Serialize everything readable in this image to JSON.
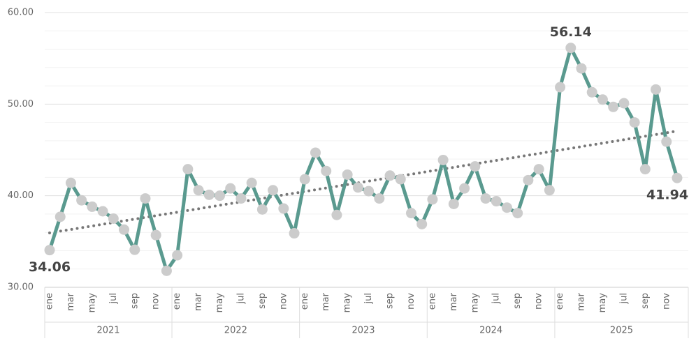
{
  "chart_data": {
    "type": "line",
    "categories": [
      "ene",
      null,
      "mar",
      null,
      "may",
      null,
      "jul",
      null,
      "sep",
      null,
      "nov",
      null,
      "ene",
      null,
      "mar",
      null,
      "may",
      null,
      "jul",
      null,
      "sep",
      null,
      "nov",
      null,
      "ene",
      null,
      "mar",
      null,
      "may",
      null,
      "jul",
      null,
      "sep",
      null,
      "nov",
      null,
      "ene",
      null,
      "mar",
      null,
      "may",
      null,
      "jul",
      null,
      "sep",
      null,
      "nov",
      null,
      "ene",
      null,
      "mar",
      null,
      "may",
      null,
      "jul",
      null,
      "sep",
      null,
      "nov",
      null
    ],
    "groups": [
      "2021",
      "2022",
      "2023",
      "2024",
      "2025"
    ],
    "series": [
      {
        "color": "#5a9a8f",
        "marker_color": "#cccccc",
        "values": [
          34.06,
          37.7,
          41.4,
          39.5,
          38.8,
          38.3,
          37.5,
          36.3,
          34.1,
          39.7,
          35.7,
          31.8,
          33.5,
          42.9,
          40.6,
          40.1,
          40.0,
          40.8,
          39.7,
          41.4,
          38.5,
          40.6,
          38.6,
          35.9,
          41.8,
          44.7,
          42.7,
          37.9,
          42.3,
          40.9,
          40.5,
          39.7,
          42.2,
          41.8,
          38.1,
          36.9,
          39.6,
          43.9,
          39.1,
          40.8,
          43.2,
          39.7,
          39.4,
          38.7,
          38.1,
          41.7,
          42.9,
          40.6,
          51.85,
          56.14,
          53.9,
          51.3,
          50.5,
          49.7,
          50.1,
          48.0,
          42.9,
          51.6,
          45.9,
          41.94
        ],
        "value_labels": [
          "34.06",
          null,
          null,
          null,
          null,
          null,
          null,
          null,
          null,
          null,
          null,
          null,
          null,
          null,
          null,
          null,
          null,
          null,
          null,
          null,
          null,
          null,
          null,
          null,
          null,
          null,
          null,
          null,
          null,
          null,
          null,
          null,
          null,
          null,
          null,
          null,
          null,
          null,
          null,
          null,
          null,
          null,
          null,
          null,
          null,
          null,
          null,
          null,
          null,
          "56.14",
          null,
          null,
          null,
          null,
          null,
          null,
          null,
          null,
          null,
          "41.94"
        ]
      }
    ],
    "trendline": {
      "color": "#777777",
      "start": 35.94,
      "end": 47.06
    },
    "ylim": [
      30,
      60
    ],
    "yticks": [
      {
        "value": 30,
        "label": "30.00"
      },
      {
        "value": 40,
        "label": "40.00"
      },
      {
        "value": 50,
        "label": "50.00"
      },
      {
        "value": 60,
        "label": "60.00"
      }
    ],
    "minor_yticks": [
      32,
      34,
      36,
      38,
      42,
      44,
      46,
      48,
      52,
      54,
      56,
      58
    ],
    "grid": true
  }
}
